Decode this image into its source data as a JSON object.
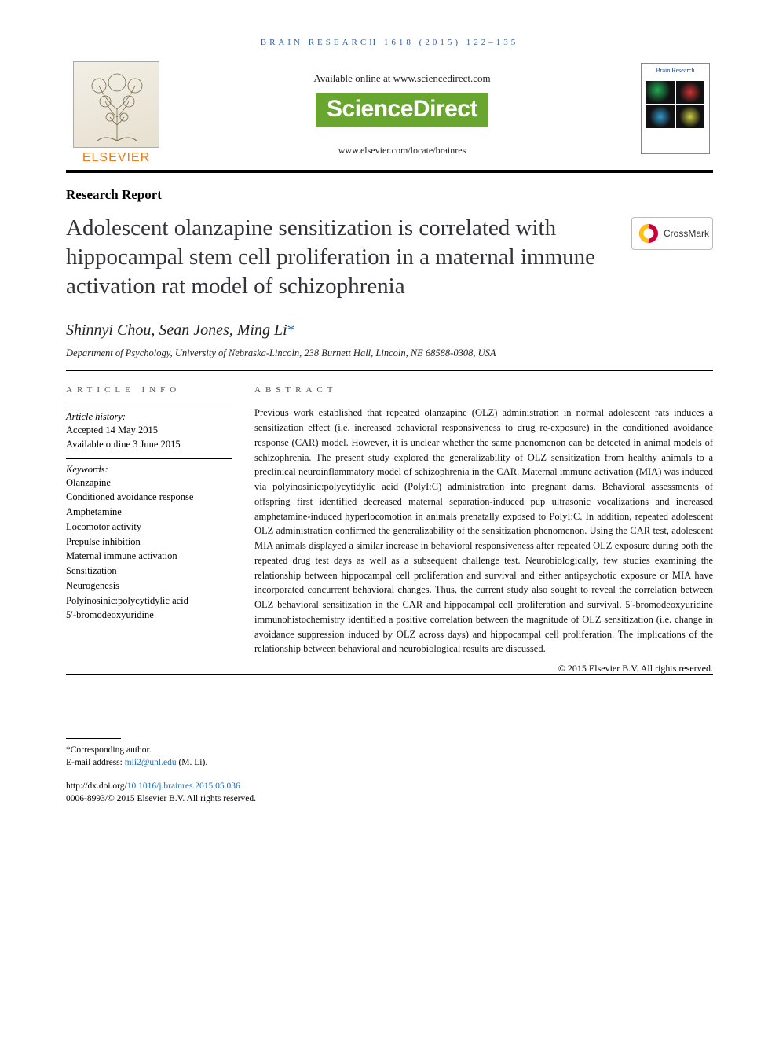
{
  "running_head": "BRAIN RESEARCH 1618 (2015) 122–135",
  "header": {
    "available_line": "Available online at www.sciencedirect.com",
    "sciencedirect": "ScienceDirect",
    "journal_url": "www.elsevier.com/locate/brainres",
    "publisher": "ELSEVIER",
    "cover_title": "Brain Research"
  },
  "article_type": "Research Report",
  "title": "Adolescent olanzapine sensitization is correlated with hippocampal stem cell proliferation in a maternal immune activation rat model of schizophrenia",
  "crossmark_label": "CrossMark",
  "authors_html": "Shinnyi Chou, Sean Jones, Ming Li",
  "corr_mark": "*",
  "affiliation": "Department of Psychology, University of Nebraska-Lincoln, 238 Burnett Hall, Lincoln, NE 68588-0308, USA",
  "info_heading": "ARTICLE INFO",
  "abstract_heading": "ABSTRACT",
  "history": {
    "label": "Article history:",
    "accepted": "Accepted 14 May 2015",
    "online": "Available online 3 June 2015"
  },
  "keywords_label": "Keywords:",
  "keywords": [
    "Olanzapine",
    "Conditioned avoidance response",
    "Amphetamine",
    "Locomotor activity",
    "Prepulse inhibition",
    "Maternal immune activation",
    "Sensitization",
    "Neurogenesis",
    "Polyinosinic:polycytidylic acid",
    "5′-bromodeoxyuridine"
  ],
  "abstract": "Previous work established that repeated olanzapine (OLZ) administration in normal adolescent rats induces a sensitization effect (i.e. increased behavioral responsiveness to drug re-exposure) in the conditioned avoidance response (CAR) model. However, it is unclear whether the same phenomenon can be detected in animal models of schizophrenia. The present study explored the generalizability of OLZ sensitization from healthy animals to a preclinical neuroinflammatory model of schizophrenia in the CAR. Maternal immune activation (MIA) was induced via polyinosinic:polycytidylic acid (PolyI:C) administration into pregnant dams. Behavioral assessments of offspring first identified decreased maternal separation-induced pup ultrasonic vocalizations and increased amphetamine-induced hyperlocomotion in animals prenatally exposed to PolyI:C. In addition, repeated adolescent OLZ administration confirmed the generalizability of the sensitization phenomenon. Using the CAR test, adolescent MIA animals displayed a similar increase in behavioral responsiveness after repeated OLZ exposure during both the repeated drug test days as well as a subsequent challenge test. Neurobiologically, few studies examining the relationship between hippocampal cell proliferation and survival and either antipsychotic exposure or MIA have incorporated concurrent behavioral changes. Thus, the current study also sought to reveal the correlation between OLZ behavioral sensitization in the CAR and hippocampal cell proliferation and survival. 5′-bromodeoxyuridine immunohistochemistry identified a positive correlation between the magnitude of OLZ sensitization (i.e. change in avoidance suppression induced by OLZ across days) and hippocampal cell proliferation. The implications of the relationship between behavioral and neurobiological results are discussed.",
  "copyright": "© 2015 Elsevier B.V. All rights reserved.",
  "footer": {
    "corr_label": "*Corresponding author.",
    "email_label": "E-mail address: ",
    "email": "mli2@unl.edu",
    "email_suffix": " (M. Li).",
    "doi_prefix": "http://dx.doi.org/",
    "doi": "10.1016/j.brainres.2015.05.036",
    "issn_line": "0006-8993/© 2015 Elsevier B.V. All rights reserved."
  },
  "colors": {
    "link": "#1f6fbf",
    "orange": "#ec7a18",
    "green": "#69a62f",
    "head_blue": "#2d5fa3"
  }
}
